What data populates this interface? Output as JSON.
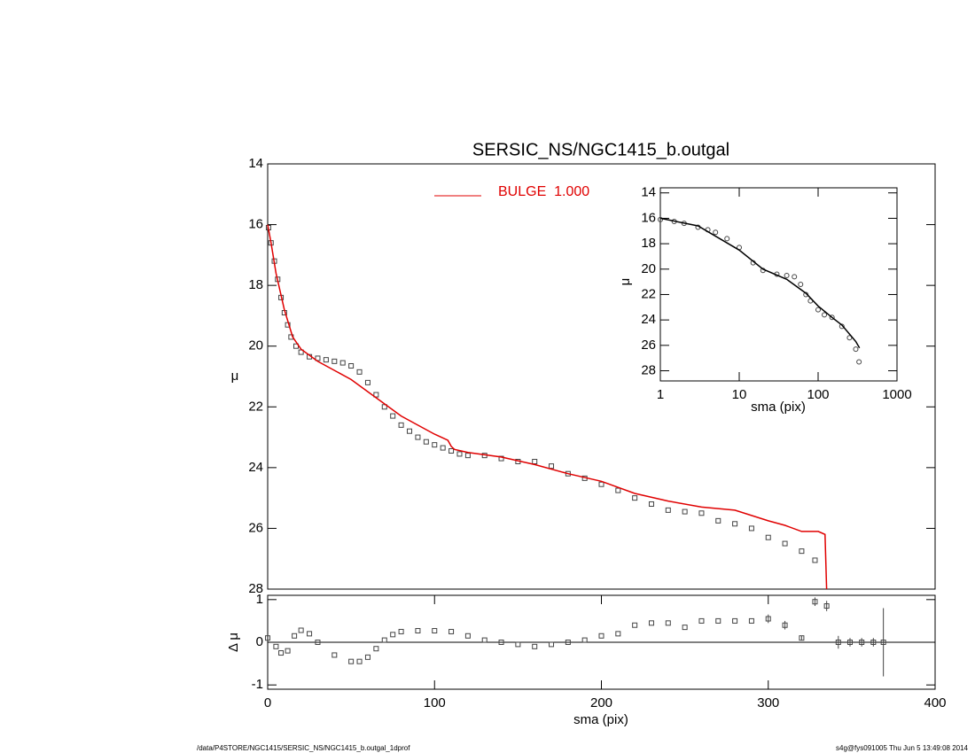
{
  "chart_data": [
    {
      "type": "scatter",
      "title": "SERSIC_NS/NGC1415_b.outgal",
      "y_label": "μ",
      "xlim": [
        0,
        400
      ],
      "ylim": [
        14,
        28
      ],
      "y_inverted": true,
      "yticks": [
        14,
        16,
        18,
        20,
        22,
        24,
        26,
        28
      ],
      "series": [
        {
          "color": "#444444",
          "marker": "square",
          "x": [
            0.5,
            2,
            4,
            6,
            8,
            10,
            12,
            14,
            17,
            20,
            25,
            30,
            35,
            40,
            45,
            50,
            55,
            60,
            65,
            70,
            75,
            80,
            85,
            90,
            95,
            100,
            105,
            110,
            115,
            120,
            130,
            140,
            150,
            160,
            170,
            180,
            190,
            200,
            210,
            220,
            230,
            240,
            250,
            260,
            270,
            280,
            290,
            300,
            310,
            320,
            328
          ],
          "values": [
            16.1,
            16.6,
            17.2,
            17.8,
            18.4,
            18.9,
            19.3,
            19.7,
            20.0,
            20.2,
            20.35,
            20.4,
            20.45,
            20.5,
            20.55,
            20.65,
            20.85,
            21.2,
            21.6,
            22.0,
            22.3,
            22.6,
            22.8,
            23.0,
            23.15,
            23.25,
            23.35,
            23.45,
            23.55,
            23.6,
            23.6,
            23.7,
            23.8,
            23.8,
            23.95,
            24.2,
            24.35,
            24.55,
            24.75,
            25.0,
            25.2,
            25.4,
            25.45,
            25.5,
            25.75,
            25.85,
            26.0,
            26.3,
            26.5,
            26.75,
            27.05
          ]
        },
        {
          "name": "BULGE  1.000",
          "color": "#e00000",
          "marker": "line",
          "x": [
            0,
            2,
            5,
            10,
            15,
            20,
            30,
            40,
            50,
            60,
            70,
            80,
            90,
            100,
            108,
            110,
            112,
            120,
            140,
            160,
            180,
            200,
            220,
            240,
            260,
            280,
            300,
            310,
            320,
            330,
            334,
            335
          ],
          "values": [
            16.0,
            16.6,
            17.6,
            18.8,
            19.7,
            20.1,
            20.5,
            20.8,
            21.1,
            21.5,
            21.9,
            22.3,
            22.6,
            22.9,
            23.1,
            23.3,
            23.4,
            23.5,
            23.65,
            23.9,
            24.2,
            24.45,
            24.85,
            25.1,
            25.3,
            25.4,
            25.75,
            25.9,
            26.1,
            26.1,
            26.2,
            28.0
          ]
        }
      ]
    },
    {
      "type": "scatter",
      "x_label": "sma (pix)",
      "y_label": "μ",
      "xlog": true,
      "xlim": [
        1,
        1000
      ],
      "ylim": [
        13.6,
        28.8
      ],
      "y_inverted": true,
      "xticks": [
        1,
        10,
        100,
        1000
      ],
      "yticks": [
        14,
        16,
        18,
        20,
        22,
        24,
        26,
        28
      ],
      "series": [
        {
          "color": "#444444",
          "marker": "circle",
          "x": [
            1,
            1.5,
            2,
            3,
            4,
            5,
            7,
            10,
            15,
            20,
            30,
            40,
            50,
            60,
            70,
            80,
            100,
            120,
            150,
            200,
            250,
            300,
            330
          ],
          "values": [
            16.1,
            16.25,
            16.4,
            16.7,
            16.9,
            17.1,
            17.6,
            18.3,
            19.5,
            20.1,
            20.4,
            20.5,
            20.6,
            21.2,
            22.0,
            22.5,
            23.2,
            23.6,
            23.8,
            24.5,
            25.4,
            26.3,
            27.3
          ]
        },
        {
          "color": "#000000",
          "marker": "line",
          "x": [
            1,
            3,
            10,
            20,
            40,
            70,
            100,
            150,
            200,
            300,
            335
          ],
          "values": [
            16.0,
            16.6,
            18.5,
            20.0,
            20.8,
            21.9,
            22.9,
            23.8,
            24.4,
            25.7,
            26.2
          ]
        }
      ]
    },
    {
      "type": "residual",
      "x_label": "sma (pix)",
      "y_label": "Δ μ",
      "xlim": [
        0,
        400
      ],
      "ylim": [
        -1.1,
        1.1
      ],
      "xticks": [
        0,
        100,
        200,
        300,
        400
      ],
      "yticks": [
        -1,
        0,
        1
      ],
      "series": [
        {
          "color": "#444444",
          "marker": "square",
          "x": [
            0,
            5,
            8,
            12,
            16,
            20,
            25,
            30,
            40,
            50,
            55,
            60,
            65,
            70,
            75,
            80,
            90,
            100,
            110,
            120,
            130,
            140,
            150,
            160,
            170,
            180,
            190,
            200,
            210,
            220,
            230,
            240,
            250,
            260,
            270,
            280,
            290,
            300,
            310,
            320,
            328,
            335,
            342,
            349,
            356,
            363,
            369
          ],
          "values": [
            0.1,
            -0.1,
            -0.25,
            -0.2,
            0.15,
            0.28,
            0.2,
            0.0,
            -0.3,
            -0.45,
            -0.45,
            -0.35,
            -0.15,
            0.05,
            0.18,
            0.25,
            0.27,
            0.27,
            0.25,
            0.15,
            0.05,
            0.0,
            -0.05,
            -0.1,
            -0.05,
            0.0,
            0.05,
            0.15,
            0.2,
            0.4,
            0.45,
            0.45,
            0.35,
            0.5,
            0.5,
            0.5,
            0.5,
            0.55,
            0.4,
            0.1,
            0.95,
            0.85,
            0.0,
            0.0,
            0.0,
            0.0,
            0.0
          ],
          "errors": [
            null,
            null,
            null,
            null,
            null,
            null,
            null,
            null,
            null,
            null,
            null,
            null,
            null,
            null,
            null,
            null,
            null,
            null,
            null,
            null,
            null,
            null,
            null,
            null,
            null,
            null,
            null,
            null,
            null,
            null,
            null,
            null,
            null,
            null,
            null,
            null,
            null,
            0.1,
            0.1,
            0.05,
            0.1,
            0.12,
            0.15,
            0.1,
            0.1,
            0.1,
            0.8
          ]
        }
      ]
    }
  ],
  "footer": {
    "left": "/data/P4STORE/NGC1415/SERSIC_NS/NGC1415_b.outgal_1dprof",
    "right": "s4g@fys091005  Thu Jun  5 13:49:08 2014"
  }
}
